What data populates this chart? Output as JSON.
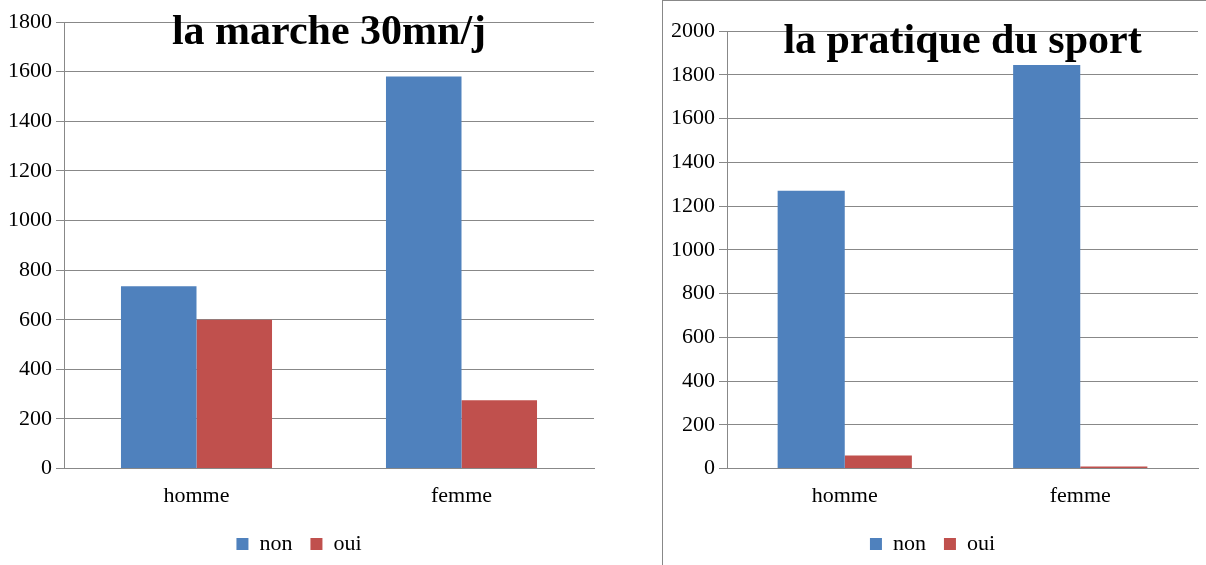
{
  "chart_data": [
    {
      "type": "bar",
      "title": "la marche 30mn/j",
      "categories": [
        "homme",
        "femme"
      ],
      "series": [
        {
          "name": "non",
          "color": "#4f81bd",
          "values": [
            735,
            1580
          ]
        },
        {
          "name": "oui",
          "color": "#c0504d",
          "values": [
            600,
            275
          ]
        }
      ],
      "ylim": [
        0,
        1800
      ],
      "yticks": [
        0,
        200,
        400,
        600,
        800,
        1000,
        1200,
        1400,
        1600,
        1800
      ],
      "grid": "y",
      "legend": "bottom"
    },
    {
      "type": "bar",
      "title": "la pratique du sport",
      "categories": [
        "homme",
        "femme"
      ],
      "series": [
        {
          "name": "non",
          "color": "#4f81bd",
          "values": [
            1270,
            1845
          ]
        },
        {
          "name": "oui",
          "color": "#c0504d",
          "values": [
            60,
            10
          ]
        }
      ],
      "ylim": [
        0,
        2000
      ],
      "yticks": [
        0,
        200,
        400,
        600,
        800,
        1000,
        1200,
        1400,
        1600,
        1800,
        2000
      ],
      "grid": "y",
      "legend": "bottom"
    }
  ]
}
